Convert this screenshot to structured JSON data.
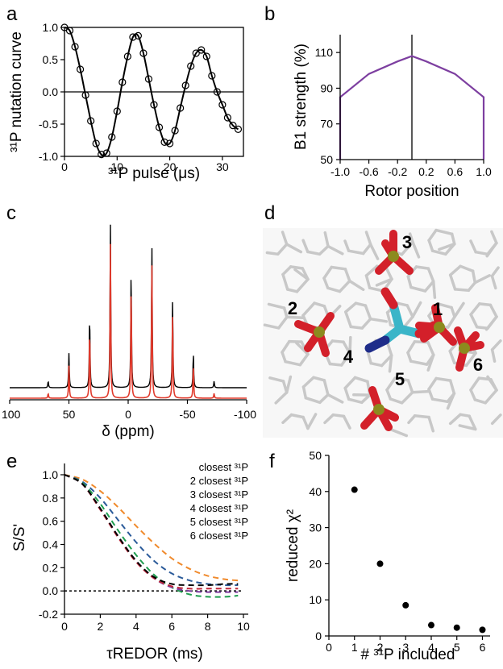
{
  "chart_data": [
    {
      "panel": "a",
      "type": "line",
      "xlabel": "³¹P pulse (μs)",
      "ylabel": "³¹P nutation curve",
      "xlim": [
        0,
        34
      ],
      "ylim": [
        -1.0,
        1.0
      ],
      "xticks": [
        "0",
        "10",
        "20",
        "30"
      ],
      "yticks": [
        "1.0",
        "0.5",
        "0.0",
        "-0.5",
        "-1.0"
      ],
      "series": [
        {
          "style": "circles with fitted line",
          "x": [
            0,
            1,
            2,
            3,
            4,
            5,
            6,
            7,
            8,
            9,
            10,
            11,
            12,
            13,
            14,
            15,
            16,
            17,
            18,
            19,
            20,
            21,
            22,
            23,
            24,
            25,
            26,
            27,
            28,
            29,
            30,
            31,
            32,
            33
          ],
          "y": [
            1.0,
            0.95,
            0.7,
            0.35,
            -0.05,
            -0.45,
            -0.8,
            -0.97,
            -0.95,
            -0.7,
            -0.3,
            0.15,
            0.55,
            0.85,
            0.87,
            0.6,
            0.2,
            -0.2,
            -0.55,
            -0.78,
            -0.8,
            -0.6,
            -0.25,
            0.1,
            0.4,
            0.6,
            0.65,
            0.55,
            0.25,
            0.0,
            -0.2,
            -0.4,
            -0.52,
            -0.58
          ]
        }
      ],
      "zero_line": true
    },
    {
      "panel": "b",
      "type": "line",
      "xlabel": "Rotor position",
      "ylabel": "B1 strength (%)",
      "xlim": [
        -1.0,
        1.0
      ],
      "ylim": [
        50,
        120
      ],
      "xticks": [
        "-1.0",
        "-0.6",
        "-0.2",
        "0.2",
        "0.6",
        "1.0"
      ],
      "yticks": [
        "50",
        "70",
        "90",
        "110"
      ],
      "series": [
        {
          "x": [
            -1.0,
            -1.0,
            -0.6,
            -0.2,
            0.0,
            0.2,
            0.6,
            1.0,
            1.0
          ],
          "y": [
            50,
            85,
            98,
            105,
            108,
            105,
            98,
            85,
            50
          ]
        }
      ],
      "vline_x": 0.0,
      "color": "#7d3fa0"
    },
    {
      "panel": "c",
      "type": "line",
      "xlabel": "δ (ppm)",
      "xlim": [
        100,
        -100
      ],
      "xticks": [
        "100",
        "50",
        "0",
        "-50",
        "-100"
      ],
      "series": [
        {
          "style": "experimental",
          "color": "#000000",
          "peaks_ppm": [
            67.5,
            50,
            32.5,
            15,
            -2.5,
            -20,
            -37.5,
            -55,
            -72.5
          ],
          "heights": [
            0.04,
            0.21,
            0.45,
            1.0,
            0.73,
            0.88,
            0.55,
            0.21,
            0.04
          ]
        },
        {
          "style": "simulated",
          "color": "#e03a2c",
          "peaks_ppm": [
            67.5,
            50,
            32.5,
            15,
            -2.5,
            -20,
            -37.5,
            -55,
            -72.5
          ],
          "heights": [
            0.03,
            0.2,
            0.43,
            0.96,
            0.7,
            0.85,
            0.53,
            0.2,
            0.03
          ]
        }
      ]
    },
    {
      "panel": "e",
      "type": "line",
      "xlabel": "τREDOR (ms)",
      "ylabel": "S/S'",
      "xlim": [
        0,
        10
      ],
      "ylim": [
        -0.2,
        1.0
      ],
      "xticks": [
        "0",
        "2",
        "4",
        "6",
        "8",
        "10"
      ],
      "yticks": [
        "1.0",
        "0.8",
        "0.6",
        "0.4",
        "0.2",
        "0.0",
        "-0.2"
      ],
      "series": [
        {
          "name": "closest ³¹P",
          "color": "#f08a2c",
          "x": [
            0,
            1,
            2,
            3,
            4,
            5,
            6,
            7,
            8,
            9,
            9.7
          ],
          "y": [
            1.0,
            0.96,
            0.86,
            0.72,
            0.56,
            0.41,
            0.28,
            0.19,
            0.13,
            0.1,
            0.09
          ]
        },
        {
          "name": "2 closest ³¹P",
          "color": "#2b5b9a",
          "x": [
            0,
            1,
            2,
            3,
            4,
            5,
            6,
            7,
            8,
            9,
            9.7
          ],
          "y": [
            1.0,
            0.94,
            0.8,
            0.61,
            0.42,
            0.26,
            0.15,
            0.09,
            0.06,
            0.05,
            0.05
          ]
        },
        {
          "name": "3 closest ³¹P",
          "color": "#1f9e50",
          "x": [
            0,
            1,
            2,
            3,
            4,
            5,
            6,
            7,
            8,
            9,
            9.7
          ],
          "y": [
            1.0,
            0.93,
            0.75,
            0.52,
            0.31,
            0.14,
            0.03,
            -0.03,
            -0.05,
            -0.05,
            -0.04
          ]
        },
        {
          "name": "4 closest ³¹P",
          "color": "#7d3fa0",
          "x": [
            0,
            1,
            2,
            3,
            4,
            5,
            6,
            7,
            8,
            9,
            9.7
          ],
          "y": [
            1.0,
            0.92,
            0.71,
            0.47,
            0.26,
            0.11,
            0.03,
            0.0,
            -0.01,
            -0.01,
            -0.01
          ]
        },
        {
          "name": "5 closest ³¹P",
          "color": "#c0283c",
          "x": [
            0,
            1,
            2,
            3,
            4,
            5,
            6,
            7,
            8,
            9,
            9.7
          ],
          "y": [
            1.0,
            0.92,
            0.7,
            0.46,
            0.25,
            0.11,
            0.04,
            0.02,
            0.02,
            0.02,
            0.02
          ]
        },
        {
          "name": "6 closest ³¹P",
          "color": "#000000",
          "x": [
            0,
            1,
            2,
            3,
            4,
            5,
            6,
            7,
            8,
            9,
            9.7
          ],
          "y": [
            1.0,
            0.92,
            0.71,
            0.47,
            0.26,
            0.12,
            0.06,
            0.05,
            0.05,
            0.06,
            0.06
          ]
        }
      ],
      "zero_line": true,
      "legend": "top-right"
    },
    {
      "panel": "f",
      "type": "scatter",
      "xlabel": "# ³¹P included",
      "ylabel": "reduced χ²",
      "xlim": [
        0,
        6.3
      ],
      "ylim": [
        0,
        50
      ],
      "xticks": [
        "0",
        "1",
        "2",
        "3",
        "4",
        "5",
        "6"
      ],
      "yticks": [
        "0",
        "10",
        "20",
        "30",
        "40",
        "50"
      ],
      "x": [
        1,
        2,
        3,
        4,
        5,
        6
      ],
      "y": [
        40.5,
        20,
        8.5,
        3.0,
        2.3,
        1.7
      ]
    }
  ],
  "panels": {
    "a": {
      "letter": "a"
    },
    "b": {
      "letter": "b"
    },
    "c": {
      "letter": "c"
    },
    "d": {
      "letter": "d",
      "site_labels": [
        {
          "text": "1",
          "color": "#f08a2c"
        },
        {
          "text": "2",
          "color": "#2b5b9a"
        },
        {
          "text": "3",
          "color": "#1f9e50"
        },
        {
          "text": "4",
          "color": "#7d3fa0"
        },
        {
          "text": "5",
          "color": "#c0283c"
        },
        {
          "text": "6",
          "color": "#000000"
        }
      ],
      "colors": {
        "phosphate_p": "#8c8a1e",
        "phosphate_o": "#d3202a",
        "ligand_c": "#3bb5c8",
        "ligand_n": "#1f2d8a",
        "lattice": "#c8c8c8"
      }
    },
    "e": {
      "letter": "e"
    },
    "f": {
      "letter": "f"
    }
  }
}
